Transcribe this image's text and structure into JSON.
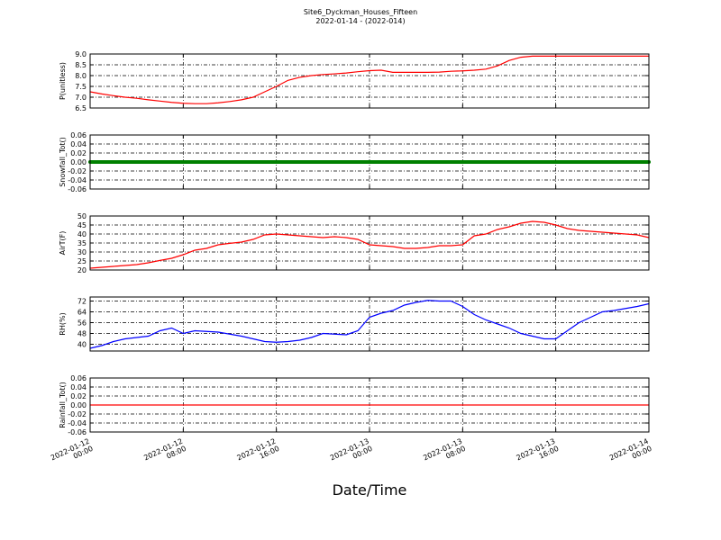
{
  "header": {
    "title": "Site6_Dyckman_Houses_Fifteen",
    "subtitle": "2022-01-14 - (2022-014)",
    "xlabel": "Date/Time"
  },
  "chart_data": [
    {
      "type": "line",
      "ylabel": "P(unitless)",
      "color": "#ff0000",
      "grid": true,
      "x": [
        "2022-01-12 00:00",
        "2022-01-12 01:00",
        "2022-01-12 02:00",
        "2022-01-12 03:00",
        "2022-01-12 04:00",
        "2022-01-12 05:00",
        "2022-01-12 06:00",
        "2022-01-12 07:00",
        "2022-01-12 08:00",
        "2022-01-12 09:00",
        "2022-01-12 10:00",
        "2022-01-12 11:00",
        "2022-01-12 12:00",
        "2022-01-12 13:00",
        "2022-01-12 14:00",
        "2022-01-12 15:00",
        "2022-01-12 16:00",
        "2022-01-12 17:00",
        "2022-01-12 18:00",
        "2022-01-12 19:00",
        "2022-01-12 20:00",
        "2022-01-12 21:00",
        "2022-01-12 22:00",
        "2022-01-12 23:00",
        "2022-01-13 00:00",
        "2022-01-13 01:00",
        "2022-01-13 02:00",
        "2022-01-13 03:00",
        "2022-01-13 04:00",
        "2022-01-13 05:00",
        "2022-01-13 06:00",
        "2022-01-13 07:00",
        "2022-01-13 08:00",
        "2022-01-13 09:00",
        "2022-01-13 10:00",
        "2022-01-13 11:00",
        "2022-01-13 12:00",
        "2022-01-13 13:00",
        "2022-01-13 14:00",
        "2022-01-13 15:00",
        "2022-01-13 16:00",
        "2022-01-13 17:00",
        "2022-01-13 18:00",
        "2022-01-13 19:00",
        "2022-01-13 20:00",
        "2022-01-13 21:00",
        "2022-01-13 22:00",
        "2022-01-13 23:00",
        "2022-01-14 00:00"
      ],
      "values": [
        7.25,
        7.15,
        7.07,
        7.0,
        6.95,
        6.88,
        6.82,
        6.76,
        6.72,
        6.7,
        6.7,
        6.74,
        6.8,
        6.88,
        7.0,
        7.25,
        7.5,
        7.78,
        7.92,
        8.0,
        8.05,
        8.08,
        8.12,
        8.18,
        8.23,
        8.25,
        8.15,
        8.15,
        8.15,
        8.15,
        8.16,
        8.2,
        8.22,
        8.25,
        8.3,
        8.45,
        8.7,
        8.85,
        8.9,
        8.9,
        8.9,
        8.9,
        8.9,
        8.9,
        8.9,
        8.9,
        8.9,
        8.9,
        8.9
      ],
      "xlim": [
        "2022-01-12 00:00",
        "2022-01-14 00:00"
      ],
      "xticks": [
        "2022-01-12 00:00",
        "2022-01-12 08:00",
        "2022-01-12 16:00",
        "2022-01-13 00:00",
        "2022-01-13 08:00",
        "2022-01-13 16:00",
        "2022-01-14 00:00"
      ],
      "ylim": [
        6.5,
        9.0
      ],
      "yticks": [
        6.5,
        {
          "value": 7,
          "label": "7.0"
        },
        7.5,
        {
          "value": 8,
          "label": "8.0"
        },
        8.5,
        {
          "value": 9,
          "label": "9.0"
        }
      ]
    },
    {
      "type": "line",
      "ylabel": "Snowfall_Tot()",
      "color": "#008000",
      "grid": true,
      "x": [
        "2022-01-12 00:00",
        "2022-01-12 01:00",
        "2022-01-12 02:00",
        "2022-01-12 03:00",
        "2022-01-12 04:00",
        "2022-01-12 05:00",
        "2022-01-12 06:00",
        "2022-01-12 07:00",
        "2022-01-12 08:00",
        "2022-01-12 09:00",
        "2022-01-12 10:00",
        "2022-01-12 11:00",
        "2022-01-12 12:00",
        "2022-01-12 13:00",
        "2022-01-12 14:00",
        "2022-01-12 15:00",
        "2022-01-12 16:00",
        "2022-01-12 17:00",
        "2022-01-12 18:00",
        "2022-01-12 19:00",
        "2022-01-12 20:00",
        "2022-01-12 21:00",
        "2022-01-12 22:00",
        "2022-01-12 23:00",
        "2022-01-13 00:00",
        "2022-01-13 01:00",
        "2022-01-13 02:00",
        "2022-01-13 03:00",
        "2022-01-13 04:00",
        "2022-01-13 05:00",
        "2022-01-13 06:00",
        "2022-01-13 07:00",
        "2022-01-13 08:00",
        "2022-01-13 09:00",
        "2022-01-13 10:00",
        "2022-01-13 11:00",
        "2022-01-13 12:00",
        "2022-01-13 13:00",
        "2022-01-13 14:00",
        "2022-01-13 15:00",
        "2022-01-13 16:00",
        "2022-01-13 17:00",
        "2022-01-13 18:00",
        "2022-01-13 19:00",
        "2022-01-13 20:00",
        "2022-01-13 21:00",
        "2022-01-13 22:00",
        "2022-01-13 23:00",
        "2022-01-14 00:00"
      ],
      "values": [
        0,
        0,
        0,
        0,
        0,
        0,
        0,
        0,
        0,
        0,
        0,
        0,
        0,
        0,
        0,
        0,
        0,
        0,
        0,
        0,
        0,
        0,
        0,
        0,
        0,
        0,
        0,
        0,
        0,
        0,
        0,
        0,
        0,
        0,
        0,
        0,
        0,
        0,
        0,
        0,
        0,
        0,
        0,
        0,
        0,
        0,
        0,
        0,
        0
      ],
      "xlim": [
        "2022-01-12 00:00",
        "2022-01-14 00:00"
      ],
      "xticks": [
        "2022-01-12 00:00",
        "2022-01-12 08:00",
        "2022-01-12 16:00",
        "2022-01-13 00:00",
        "2022-01-13 08:00",
        "2022-01-13 16:00",
        "2022-01-14 00:00"
      ],
      "ylim": [
        -0.06,
        0.06
      ],
      "yticks": [
        -0.06,
        -0.04,
        -0.02,
        {
          "value": 0,
          "label": "0.00"
        },
        0.02,
        0.04,
        0.06
      ]
    },
    {
      "type": "line",
      "ylabel": "AirT(F)",
      "color": "#ff0000",
      "grid": true,
      "x": [
        "2022-01-12 00:00",
        "2022-01-12 01:00",
        "2022-01-12 02:00",
        "2022-01-12 03:00",
        "2022-01-12 04:00",
        "2022-01-12 05:00",
        "2022-01-12 06:00",
        "2022-01-12 07:00",
        "2022-01-12 08:00",
        "2022-01-12 09:00",
        "2022-01-12 10:00",
        "2022-01-12 11:00",
        "2022-01-12 12:00",
        "2022-01-12 13:00",
        "2022-01-12 14:00",
        "2022-01-12 15:00",
        "2022-01-12 16:00",
        "2022-01-12 17:00",
        "2022-01-12 18:00",
        "2022-01-12 19:00",
        "2022-01-12 20:00",
        "2022-01-12 21:00",
        "2022-01-12 22:00",
        "2022-01-12 23:00",
        "2022-01-13 00:00",
        "2022-01-13 01:00",
        "2022-01-13 02:00",
        "2022-01-13 03:00",
        "2022-01-13 04:00",
        "2022-01-13 05:00",
        "2022-01-13 06:00",
        "2022-01-13 07:00",
        "2022-01-13 08:00",
        "2022-01-13 09:00",
        "2022-01-13 10:00",
        "2022-01-13 11:00",
        "2022-01-13 12:00",
        "2022-01-13 13:00",
        "2022-01-13 14:00",
        "2022-01-13 15:00",
        "2022-01-13 16:00",
        "2022-01-13 17:00",
        "2022-01-13 18:00",
        "2022-01-13 19:00",
        "2022-01-13 20:00",
        "2022-01-13 21:00",
        "2022-01-13 22:00",
        "2022-01-13 23:00",
        "2022-01-14 00:00"
      ],
      "values": [
        21,
        21.5,
        22,
        22.5,
        23,
        24,
        25.3,
        26.5,
        28.5,
        31,
        32,
        34,
        34.8,
        35.5,
        37,
        39.5,
        40,
        39.5,
        39,
        38.5,
        38,
        38.5,
        38,
        37,
        34,
        33.5,
        33,
        32,
        32,
        32.5,
        33.5,
        33.5,
        34,
        39,
        40,
        42.5,
        44,
        46,
        47,
        46.5,
        45,
        43,
        42,
        41.5,
        41,
        40.5,
        40,
        39.5,
        38
      ],
      "xlim": [
        "2022-01-12 00:00",
        "2022-01-14 00:00"
      ],
      "xticks": [
        "2022-01-12 00:00",
        "2022-01-12 08:00",
        "2022-01-12 16:00",
        "2022-01-13 00:00",
        "2022-01-13 08:00",
        "2022-01-13 16:00",
        "2022-01-14 00:00"
      ],
      "ylim": [
        20,
        50
      ],
      "yticks": [
        20,
        25,
        30,
        35,
        40,
        45,
        50
      ]
    },
    {
      "type": "line",
      "ylabel": "RH(%)",
      "color": "#0000ff",
      "grid": true,
      "x": [
        "2022-01-12 00:00",
        "2022-01-12 01:00",
        "2022-01-12 02:00",
        "2022-01-12 03:00",
        "2022-01-12 04:00",
        "2022-01-12 05:00",
        "2022-01-12 06:00",
        "2022-01-12 07:00",
        "2022-01-12 08:00",
        "2022-01-12 09:00",
        "2022-01-12 10:00",
        "2022-01-12 11:00",
        "2022-01-12 12:00",
        "2022-01-12 13:00",
        "2022-01-12 14:00",
        "2022-01-12 15:00",
        "2022-01-12 16:00",
        "2022-01-12 17:00",
        "2022-01-12 18:00",
        "2022-01-12 19:00",
        "2022-01-12 20:00",
        "2022-01-12 21:00",
        "2022-01-12 22:00",
        "2022-01-12 23:00",
        "2022-01-13 00:00",
        "2022-01-13 01:00",
        "2022-01-13 02:00",
        "2022-01-13 03:00",
        "2022-01-13 04:00",
        "2022-01-13 05:00",
        "2022-01-13 06:00",
        "2022-01-13 07:00",
        "2022-01-13 08:00",
        "2022-01-13 09:00",
        "2022-01-13 10:00",
        "2022-01-13 11:00",
        "2022-01-13 12:00",
        "2022-01-13 13:00",
        "2022-01-13 14:00",
        "2022-01-13 15:00",
        "2022-01-13 16:00",
        "2022-01-13 17:00",
        "2022-01-13 18:00",
        "2022-01-13 19:00",
        "2022-01-13 20:00",
        "2022-01-13 21:00",
        "2022-01-13 22:00",
        "2022-01-13 23:00",
        "2022-01-14 00:00"
      ],
      "values": [
        37,
        39,
        42,
        44,
        45,
        46,
        50,
        52,
        48,
        50,
        49.5,
        49,
        47.5,
        46,
        44,
        42,
        41.5,
        42,
        43,
        45,
        48,
        47.5,
        47,
        50,
        60,
        63,
        65,
        69,
        71,
        72.5,
        72,
        72,
        68,
        62,
        58,
        55,
        52,
        48,
        46,
        44,
        44,
        50,
        56,
        60,
        64,
        65,
        66.5,
        68,
        70
      ],
      "xlim": [
        "2022-01-12 00:00",
        "2022-01-14 00:00"
      ],
      "xticks": [
        "2022-01-12 00:00",
        "2022-01-12 08:00",
        "2022-01-12 16:00",
        "2022-01-13 00:00",
        "2022-01-13 08:00",
        "2022-01-13 16:00",
        "2022-01-14 00:00"
      ],
      "ylim": [
        35,
        75
      ],
      "yticks": [
        40,
        48,
        56,
        64,
        72
      ]
    },
    {
      "type": "line",
      "ylabel": "Rainfall_Tot()",
      "color": "#ff0000",
      "grid": true,
      "x": [
        "2022-01-12 00:00",
        "2022-01-12 01:00",
        "2022-01-12 02:00",
        "2022-01-12 03:00",
        "2022-01-12 04:00",
        "2022-01-12 05:00",
        "2022-01-12 06:00",
        "2022-01-12 07:00",
        "2022-01-12 08:00",
        "2022-01-12 09:00",
        "2022-01-12 10:00",
        "2022-01-12 11:00",
        "2022-01-12 12:00",
        "2022-01-12 13:00",
        "2022-01-12 14:00",
        "2022-01-12 15:00",
        "2022-01-12 16:00",
        "2022-01-12 17:00",
        "2022-01-12 18:00",
        "2022-01-12 19:00",
        "2022-01-12 20:00",
        "2022-01-12 21:00",
        "2022-01-12 22:00",
        "2022-01-12 23:00",
        "2022-01-13 00:00",
        "2022-01-13 01:00",
        "2022-01-13 02:00",
        "2022-01-13 03:00",
        "2022-01-13 04:00",
        "2022-01-13 05:00",
        "2022-01-13 06:00",
        "2022-01-13 07:00",
        "2022-01-13 08:00",
        "2022-01-13 09:00",
        "2022-01-13 10:00",
        "2022-01-13 11:00",
        "2022-01-13 12:00",
        "2022-01-13 13:00",
        "2022-01-13 14:00",
        "2022-01-13 15:00",
        "2022-01-13 16:00",
        "2022-01-13 17:00",
        "2022-01-13 18:00",
        "2022-01-13 19:00",
        "2022-01-13 20:00",
        "2022-01-13 21:00",
        "2022-01-13 22:00",
        "2022-01-13 23:00",
        "2022-01-14 00:00"
      ],
      "values": [
        0,
        0,
        0,
        0,
        0,
        0,
        0,
        0,
        0,
        0,
        0,
        0,
        0,
        0,
        0,
        0,
        0,
        0,
        0,
        0,
        0,
        0,
        0,
        0,
        0,
        0,
        0,
        0,
        0,
        0,
        0,
        0,
        0,
        0,
        0,
        0,
        0,
        0,
        0,
        0,
        0,
        0,
        0,
        0,
        0,
        0,
        0,
        0,
        0
      ],
      "xlim": [
        "2022-01-12 00:00",
        "2022-01-14 00:00"
      ],
      "xticks": [
        "2022-01-12 00:00",
        "2022-01-12 08:00",
        "2022-01-12 16:00",
        "2022-01-13 00:00",
        "2022-01-13 08:00",
        "2022-01-13 16:00",
        "2022-01-14 00:00"
      ],
      "ylim": [
        -0.06,
        0.06
      ],
      "yticks": [
        -0.06,
        -0.04,
        -0.02,
        {
          "value": 0,
          "label": "0.00"
        },
        0.02,
        0.04,
        0.06
      ]
    }
  ]
}
